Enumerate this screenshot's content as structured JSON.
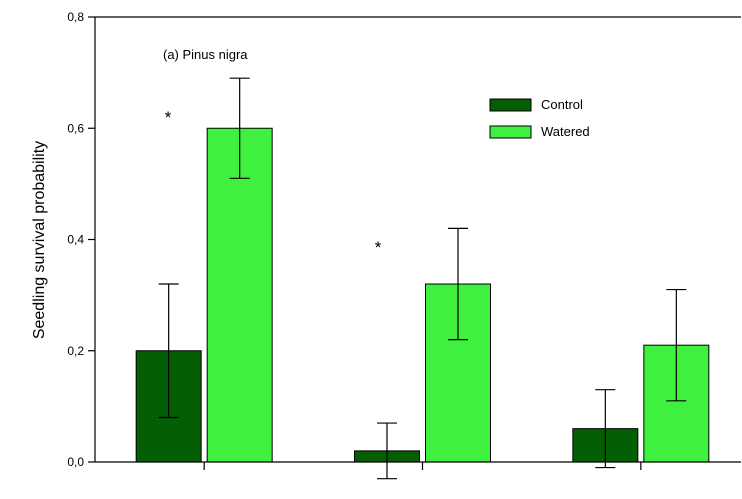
{
  "chart_data": {
    "type": "bar",
    "title": "(a) Pinus nigra",
    "xlabel": "",
    "ylabel": "Seedling survival probability",
    "ylim": [
      0,
      0.8
    ],
    "yticks": [
      0,
      0.2,
      0.4,
      0.6,
      0.8
    ],
    "ytick_labels": [
      "0,0",
      "0,2",
      "0,4",
      "0,6",
      "0,8"
    ],
    "grid": false,
    "legend": {
      "position": "top-right"
    },
    "series": [
      {
        "name": "Control",
        "color": "#045f04",
        "values": [
          0.2,
          0.02,
          0.06
        ],
        "errors": [
          0.12,
          0.05,
          0.07
        ]
      },
      {
        "name": "Watered",
        "color": "#3ff03f",
        "values": [
          0.6,
          0.32,
          0.21
        ],
        "errors": [
          0.09,
          0.1,
          0.1
        ]
      }
    ],
    "annotations": [
      {
        "text": "*",
        "group": 0
      },
      {
        "text": "*",
        "group": 1
      }
    ]
  }
}
